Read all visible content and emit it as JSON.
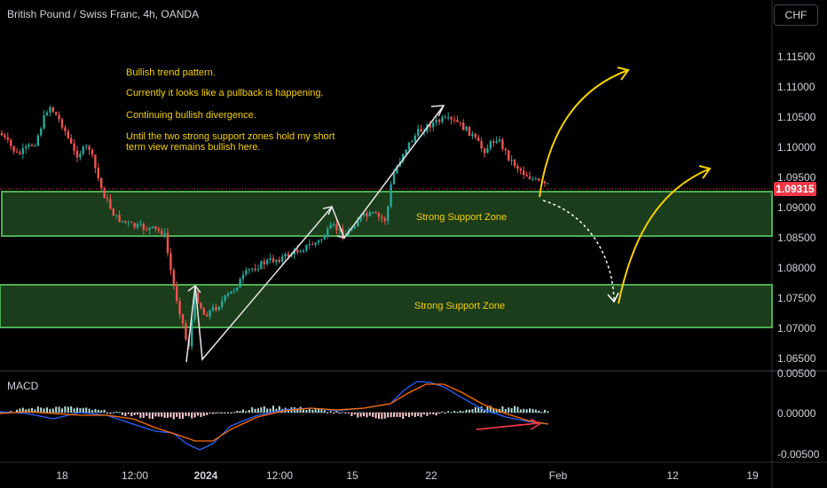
{
  "header": {
    "title": "British Pound / Swiss Franc, 4h, OANDA",
    "currency": "CHF"
  },
  "notes": [
    "Bullish trend pattern.",
    "Currently it looks like a pullback is happening.",
    "Continuing bullish divergence.",
    "Until the two strong support zones hold my short",
    "term view remains bullish here."
  ],
  "zones": {
    "upper_label": "Strong Support Zone",
    "lower_label": "Strong Support Zone"
  },
  "price_axis": {
    "ticks": [
      "1.11500",
      "1.11000",
      "1.10500",
      "1.10000",
      "1.09500",
      "1.09000",
      "1.08500",
      "1.08000",
      "1.07500",
      "1.07000",
      "1.06500"
    ],
    "current_price": "1.09315"
  },
  "macd": {
    "label": "MACD",
    "ticks": [
      "0.00500",
      "0.00000",
      "-0.00500"
    ]
  },
  "time_axis": {
    "ticks": [
      "18",
      "12:00",
      "2024",
      "12:00",
      "15",
      "22",
      "Feb",
      "12",
      "19"
    ]
  },
  "colors": {
    "up": "#26a69a",
    "down": "#ef5350",
    "zone_border": "#4caf50",
    "zone_fill": "#1b3d1b",
    "annotation": "#f5d000",
    "price_tag": "#f23645",
    "macd_line": "#2962ff",
    "signal_line": "#ff6d00"
  }
}
